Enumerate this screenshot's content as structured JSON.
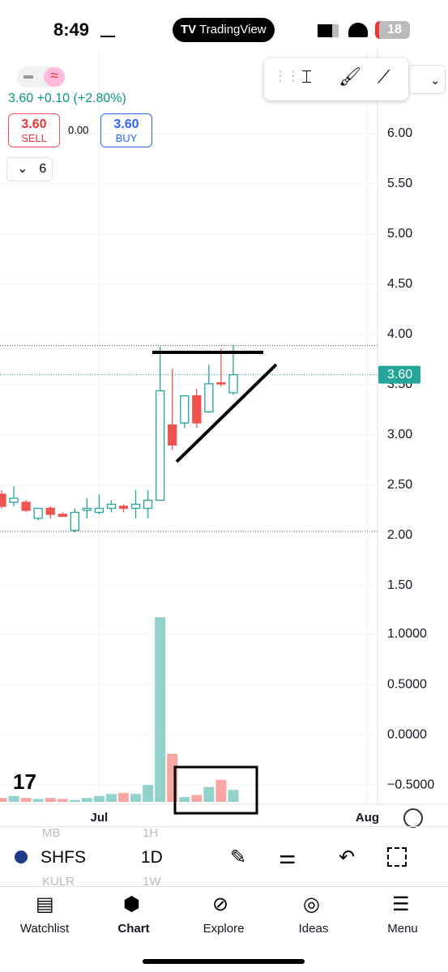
{
  "status_bar": {
    "time": "8:49",
    "app": "TradingView",
    "battery": "18"
  },
  "header": {
    "quote": "3.60 +0.10 (+2.80%)",
    "sell_price": "3.60",
    "sell_label": "SELL",
    "spread": "0.00",
    "buy_price": "3.60",
    "buy_label": "BUY",
    "indicator_count": "6"
  },
  "chart_data": {
    "type": "candlestick",
    "categories": [
      null,
      null,
      null,
      null,
      null,
      null,
      null,
      null,
      "Jul",
      null,
      null,
      null,
      null,
      null,
      null,
      null,
      null,
      null,
      null,
      null,
      null,
      null,
      null,
      null,
      null,
      null,
      null,
      null,
      null,
      null,
      "Aug"
    ],
    "open": [
      2.41,
      2.33,
      2.33,
      2.17,
      2.27,
      2.21,
      2.05,
      2.25,
      2.23,
      2.27,
      2.29,
      2.27,
      2.27,
      2.35,
      3.1,
      3.12,
      3.39,
      3.23,
      3.52,
      3.42,
      null,
      null,
      null,
      null,
      null,
      null,
      null,
      null,
      null,
      null,
      null
    ],
    "high": [
      2.45,
      2.49,
      2.35,
      2.27,
      2.29,
      2.23,
      2.27,
      2.37,
      2.41,
      2.35,
      2.31,
      2.45,
      2.45,
      3.88,
      3.66,
      3.39,
      3.46,
      3.7,
      3.86,
      3.9,
      null,
      null,
      null,
      null,
      null,
      null,
      null,
      null,
      null,
      null,
      null
    ],
    "low": [
      2.27,
      2.29,
      2.23,
      2.15,
      2.17,
      2.19,
      2.03,
      2.17,
      2.21,
      2.23,
      2.23,
      2.17,
      2.17,
      2.35,
      2.85,
      3.07,
      3.07,
      3.22,
      3.48,
      3.4,
      null,
      null,
      null,
      null,
      null,
      null,
      null,
      null,
      null,
      null,
      null
    ],
    "close": [
      2.29,
      2.37,
      2.25,
      2.27,
      2.21,
      2.19,
      2.23,
      2.27,
      2.27,
      2.31,
      2.27,
      2.31,
      2.35,
      3.44,
      2.9,
      3.39,
      3.12,
      3.51,
      3.51,
      3.6,
      null,
      null,
      null,
      null,
      null,
      null,
      null,
      null,
      null,
      null,
      null
    ],
    "up_color": "#26a69a",
    "down_color": "#ef5350",
    "ylim": [
      1.363,
      6.847
    ],
    "yticks": [
      {
        "value": 6,
        "label": "6.00"
      },
      {
        "value": 5.5,
        "label": "5.50"
      },
      {
        "value": 5,
        "label": "5.00"
      },
      {
        "value": 4.5,
        "label": "4.50"
      },
      {
        "value": 4,
        "label": "4.00"
      },
      {
        "value": 3.5,
        "label": "3.50"
      },
      {
        "value": 3,
        "label": "3.00"
      },
      {
        "value": 2.5,
        "label": "2.50"
      },
      {
        "value": 2,
        "label": "2.00"
      },
      {
        "value": 1.5,
        "label": "1.50"
      }
    ],
    "last_price": {
      "value": 3.6,
      "label": "3.60"
    },
    "reference_lines": [
      3.89,
      2.04
    ],
    "volume": [
      -0.63,
      -0.61,
      -0.63,
      -0.64,
      -0.63,
      -0.64,
      -0.65,
      -0.63,
      -0.61,
      -0.59,
      -0.58,
      -0.59,
      -0.5,
      1.17,
      -0.19,
      -0.62,
      -0.6,
      -0.52,
      -0.45,
      -0.55,
      null,
      null,
      null,
      null,
      null,
      null,
      null,
      null,
      null,
      null,
      null
    ],
    "volume_up_color": "#92d2ca",
    "volume_down_color": "#f7a6a4",
    "volume_ylim": [
      -0.669,
      1.347
    ],
    "volume_yticks": [
      {
        "value": 1,
        "label": "1.0000"
      },
      {
        "value": 0.5,
        "label": "0.5000"
      },
      {
        "value": 0,
        "label": "0.0000"
      },
      {
        "value": -0.5,
        "label": "−0.5000"
      }
    ],
    "grid": true
  },
  "bottom_bar": {
    "symbols": [
      "MB",
      "SHFS",
      "KULR"
    ],
    "intervals": [
      "1H",
      "1D",
      "1W"
    ]
  },
  "nav": [
    "Watchlist",
    "Chart",
    "Explore",
    "Ideas",
    "Menu"
  ]
}
